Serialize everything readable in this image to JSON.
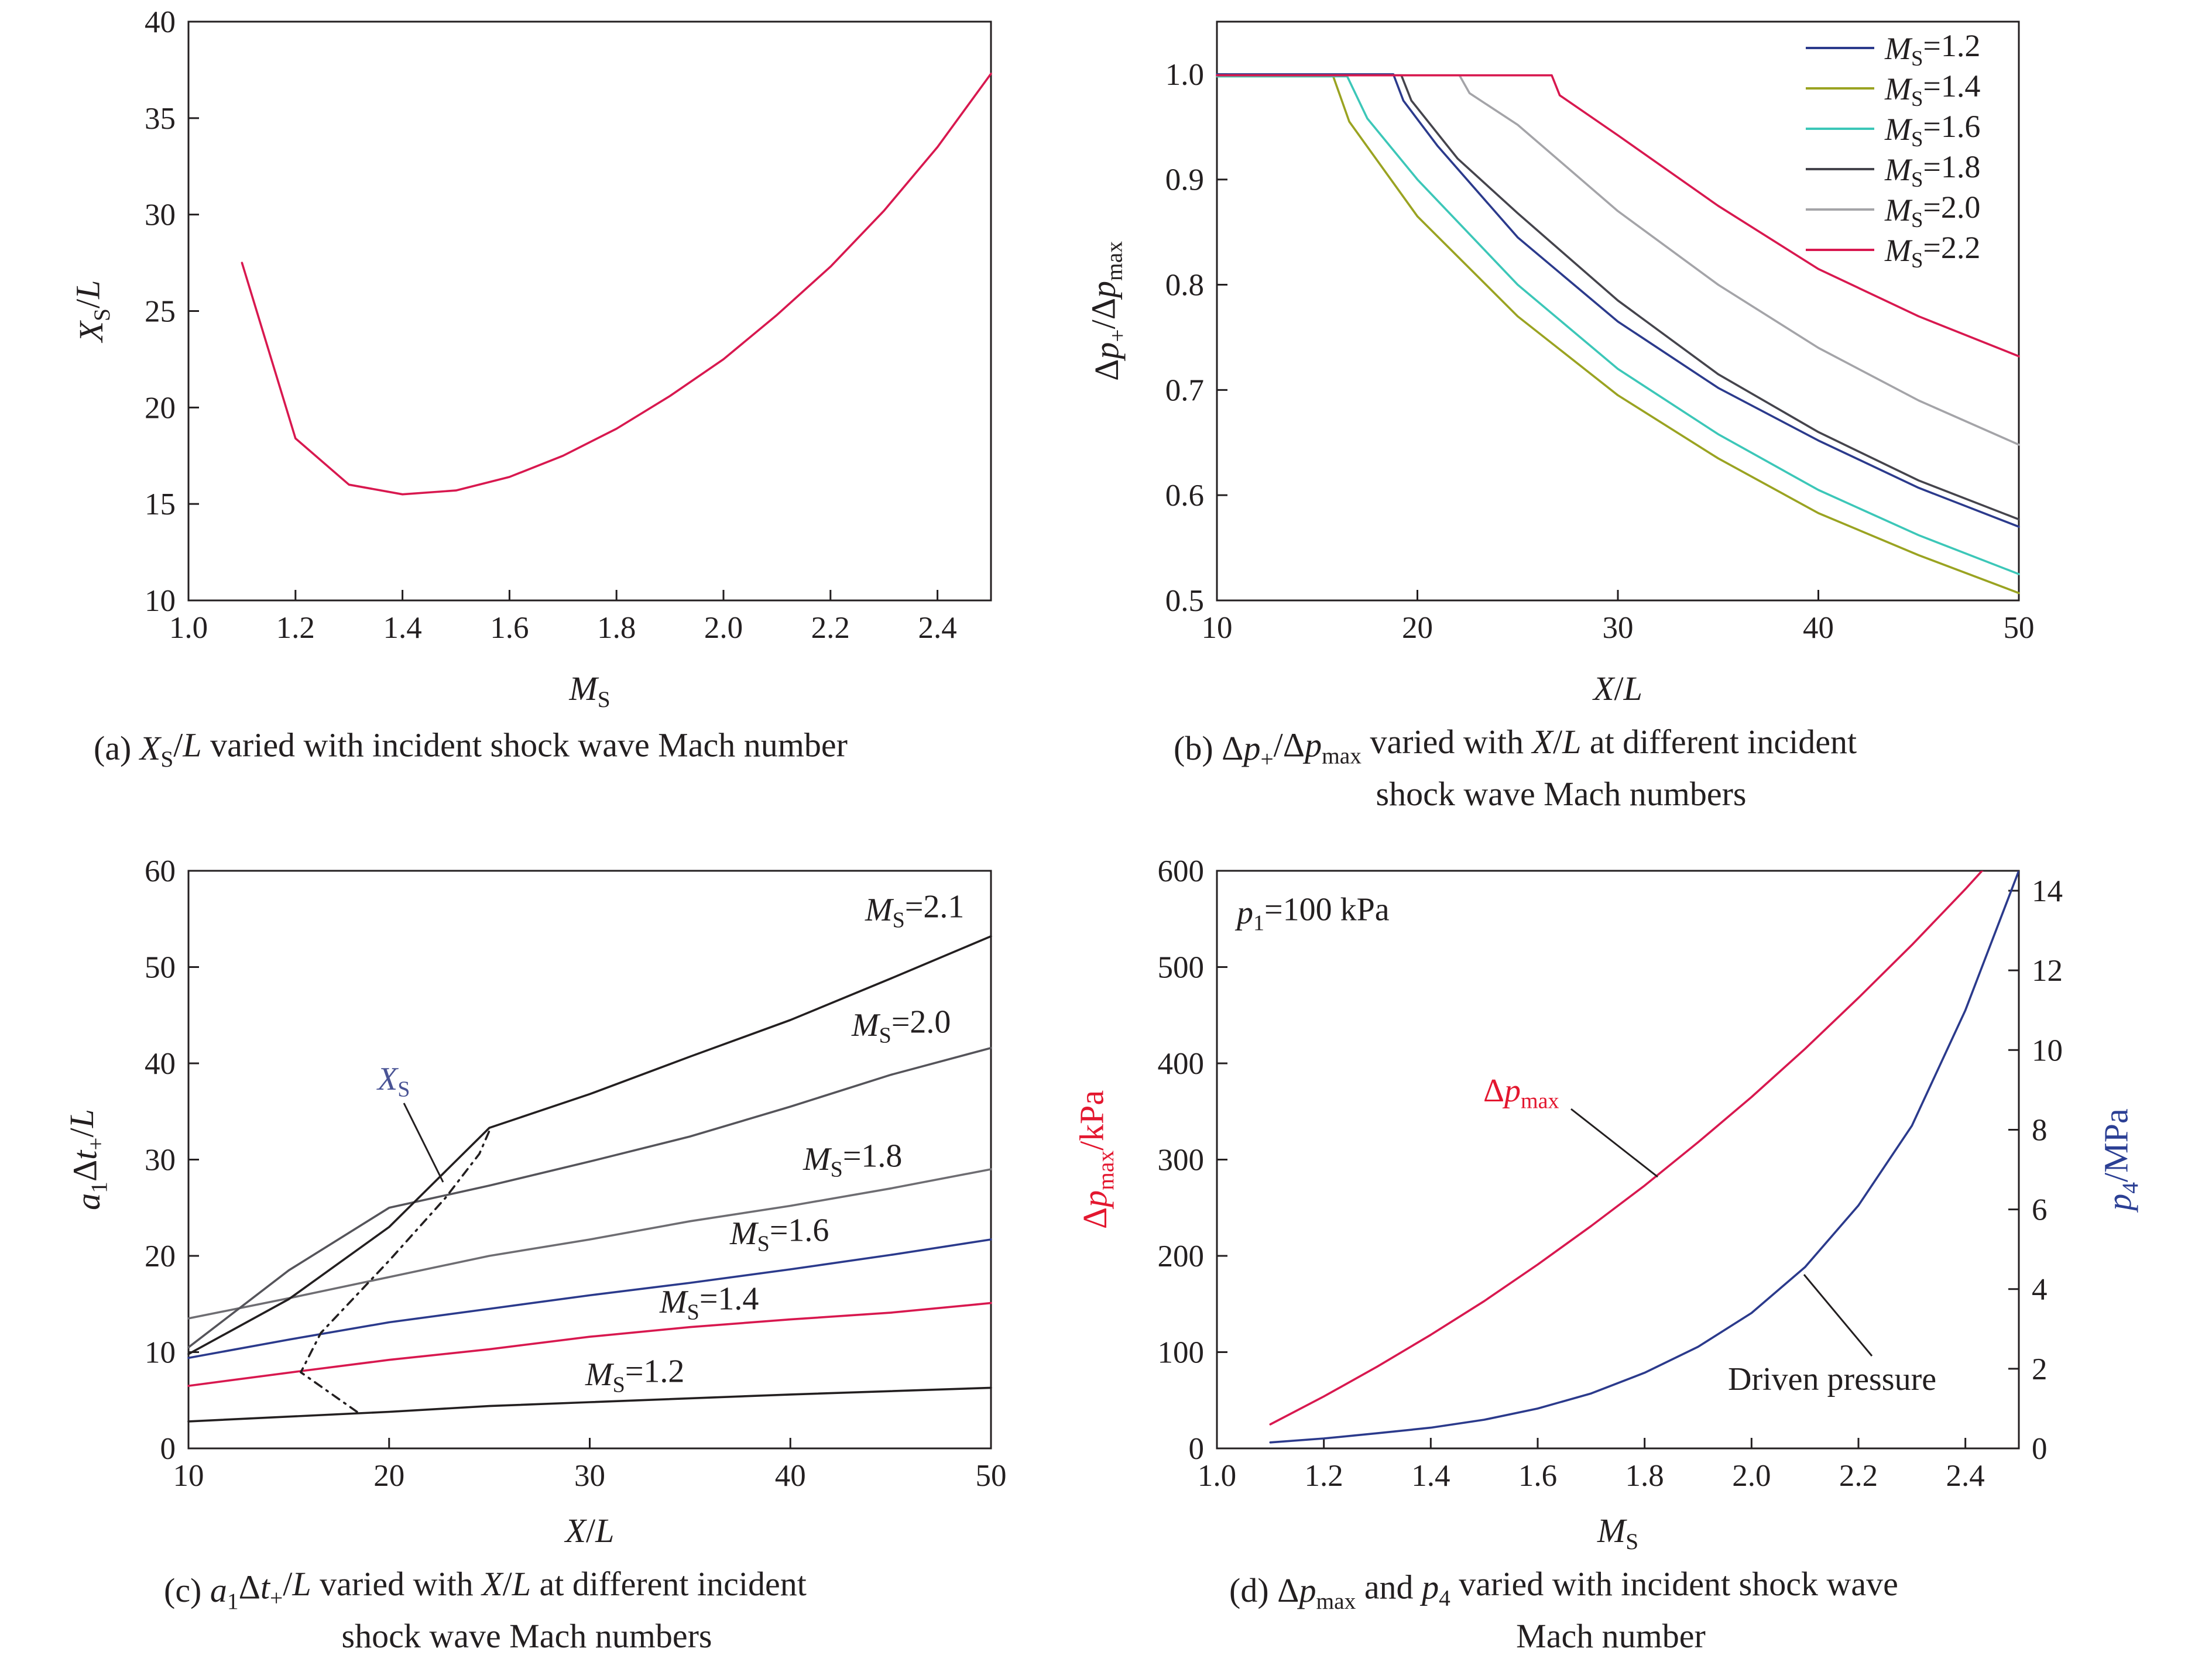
{
  "chart_data": [
    {
      "id": "a",
      "type": "line",
      "caption": "(a) XS/L varied with incident shock wave Mach number",
      "xlabel": "MS",
      "ylabel": "XS/L",
      "xlim": [
        1.0,
        2.5
      ],
      "ylim": [
        10,
        40
      ],
      "xticks": [
        "1.0",
        "1.2",
        "1.4",
        "1.6",
        "1.8",
        "2.0",
        "2.2",
        "2.4"
      ],
      "yticks": [
        "10",
        "15",
        "20",
        "25",
        "30",
        "35",
        "40"
      ],
      "grid": false,
      "series": [
        {
          "color": "#d8184f",
          "points": [
            [
              1.1,
              27.5
            ],
            [
              1.2,
              18.4
            ],
            [
              1.3,
              16.0
            ],
            [
              1.4,
              15.5
            ],
            [
              1.5,
              15.7
            ],
            [
              1.6,
              16.4
            ],
            [
              1.7,
              17.5
            ],
            [
              1.8,
              18.9
            ],
            [
              1.9,
              20.6
            ],
            [
              2.0,
              22.5
            ],
            [
              2.1,
              24.8
            ],
            [
              2.2,
              27.3
            ],
            [
              2.3,
              30.2
            ],
            [
              2.4,
              33.5
            ],
            [
              2.5,
              37.3
            ]
          ]
        }
      ]
    },
    {
      "id": "b",
      "type": "line",
      "caption": "(b) Δp+/Δpmax varied with X/L at different incident shock wave Mach numbers",
      "xlabel": "X/L",
      "ylabel": "Δp+/Δpmax",
      "xlim": [
        10,
        50
      ],
      "ylim": [
        0.5,
        1.05
      ],
      "xticks": [
        "10",
        "20",
        "30",
        "40",
        "50"
      ],
      "yticks": [
        "0.5",
        "0.6",
        "0.7",
        "0.8",
        "0.9",
        "1.0"
      ],
      "grid": false,
      "legend_position": "top-right",
      "series": [
        {
          "name": "MS=1.2",
          "color": "#2b3a8c",
          "points": [
            [
              10,
              1.0
            ],
            [
              18.8,
              1.0
            ],
            [
              19.3,
              0.975
            ],
            [
              21,
              0.932
            ],
            [
              25,
              0.845
            ],
            [
              30,
              0.765
            ],
            [
              35,
              0.702
            ],
            [
              40,
              0.652
            ],
            [
              45,
              0.607
            ],
            [
              50,
              0.57
            ]
          ]
        },
        {
          "name": "MS=1.4",
          "color": "#9aa321",
          "points": [
            [
              10,
              0.998
            ],
            [
              15.8,
              0.998
            ],
            [
              16.6,
              0.955
            ],
            [
              20,
              0.865
            ],
            [
              25,
              0.77
            ],
            [
              30,
              0.695
            ],
            [
              35,
              0.635
            ],
            [
              40,
              0.583
            ],
            [
              45,
              0.543
            ],
            [
              50,
              0.507
            ]
          ]
        },
        {
          "name": "MS=1.6",
          "color": "#3cc7b8",
          "points": [
            [
              10,
              0.998
            ],
            [
              16.5,
              0.998
            ],
            [
              17.5,
              0.958
            ],
            [
              20,
              0.9
            ],
            [
              25,
              0.8
            ],
            [
              30,
              0.72
            ],
            [
              35,
              0.658
            ],
            [
              40,
              0.605
            ],
            [
              45,
              0.562
            ],
            [
              50,
              0.525
            ]
          ]
        },
        {
          "name": "MS=1.8",
          "color": "#45444c",
          "points": [
            [
              10,
              0.999
            ],
            [
              19.2,
              0.999
            ],
            [
              19.7,
              0.975
            ],
            [
              22,
              0.92
            ],
            [
              25,
              0.868
            ],
            [
              30,
              0.785
            ],
            [
              35,
              0.715
            ],
            [
              40,
              0.66
            ],
            [
              45,
              0.614
            ],
            [
              50,
              0.577
            ]
          ]
        },
        {
          "name": "MS=2.0",
          "color": "#a4a4a8",
          "points": [
            [
              10,
              0.999
            ],
            [
              22.1,
              0.999
            ],
            [
              22.6,
              0.982
            ],
            [
              25,
              0.952
            ],
            [
              30,
              0.87
            ],
            [
              35,
              0.8
            ],
            [
              40,
              0.74
            ],
            [
              45,
              0.69
            ],
            [
              50,
              0.648
            ]
          ]
        },
        {
          "name": "MS=2.2",
          "color": "#d8184f",
          "points": [
            [
              10,
              0.999
            ],
            [
              26.7,
              0.999
            ],
            [
              27.1,
              0.98
            ],
            [
              30,
              0.942
            ],
            [
              35,
              0.875
            ],
            [
              40,
              0.815
            ],
            [
              45,
              0.77
            ],
            [
              50,
              0.732
            ]
          ]
        }
      ]
    },
    {
      "id": "c",
      "type": "line",
      "caption": "(c) a1Δt+/L varied with X/L at different incident shock wave Mach numbers",
      "xlabel": "X/L",
      "ylabel": "a1Δt+/L",
      "xlim": [
        10,
        50
      ],
      "ylim": [
        0,
        60
      ],
      "xticks": [
        "10",
        "20",
        "30",
        "40",
        "50"
      ],
      "yticks": [
        "0",
        "10",
        "20",
        "30",
        "40",
        "50",
        "60"
      ],
      "grid": false,
      "series": [
        {
          "name": "MS=1.2",
          "color": "#231f20",
          "points": [
            [
              10,
              2.8
            ],
            [
              20,
              3.8
            ],
            [
              25,
              4.4
            ],
            [
              30,
              4.8
            ],
            [
              40,
              5.6
            ],
            [
              50,
              6.3
            ]
          ]
        },
        {
          "name": "MS=1.4",
          "color": "#d8184f",
          "points": [
            [
              10,
              6.5
            ],
            [
              15.5,
              8.0
            ],
            [
              20,
              9.2
            ],
            [
              25,
              10.3
            ],
            [
              30,
              11.6
            ],
            [
              35,
              12.6
            ],
            [
              40,
              13.4
            ],
            [
              45,
              14.1
            ],
            [
              50,
              15.1
            ]
          ]
        },
        {
          "name": "MS=1.6",
          "color": "#2b3a8c",
          "points": [
            [
              10,
              9.4
            ],
            [
              15,
              11.3
            ],
            [
              20,
              13.1
            ],
            [
              25,
              14.5
            ],
            [
              30,
              15.9
            ],
            [
              35,
              17.2
            ],
            [
              40,
              18.6
            ],
            [
              45,
              20.1
            ],
            [
              50,
              21.7
            ]
          ]
        },
        {
          "name": "MS=1.8",
          "color": "#6e6d72",
          "points": [
            [
              10,
              13.5
            ],
            [
              15,
              15.6
            ],
            [
              20,
              17.8
            ],
            [
              25,
              20.0
            ],
            [
              30,
              21.7
            ],
            [
              35,
              23.6
            ],
            [
              40,
              25.2
            ],
            [
              45,
              27.0
            ],
            [
              50,
              29.0
            ]
          ]
        },
        {
          "name": "MS=2.0",
          "color": "#55545a",
          "points": [
            [
              10,
              10.5
            ],
            [
              15,
              18.5
            ],
            [
              20,
              25.0
            ],
            [
              25,
              27.3
            ],
            [
              30,
              29.8
            ],
            [
              35,
              32.4
            ],
            [
              40,
              35.5
            ],
            [
              45,
              38.8
            ],
            [
              50,
              41.6
            ]
          ]
        },
        {
          "name": "MS=2.1",
          "color": "#231f20",
          "points": [
            [
              10,
              9.8
            ],
            [
              15,
              15.5
            ],
            [
              20,
              23.0
            ],
            [
              25,
              33.3
            ],
            [
              30,
              36.8
            ],
            [
              35,
              40.7
            ],
            [
              40,
              44.5
            ],
            [
              45,
              48.8
            ],
            [
              50,
              53.2
            ]
          ]
        }
      ],
      "xs_curve": {
        "name": "XS",
        "color": "#231f20",
        "points": [
          [
            18.4,
            3.8
          ],
          [
            15.6,
            7.9
          ],
          [
            16.6,
            12.0
          ],
          [
            20.0,
            19.5
          ],
          [
            22.8,
            26.0
          ],
          [
            24.5,
            30.6
          ],
          [
            25.0,
            33.0
          ]
        ]
      }
    },
    {
      "id": "d",
      "type": "line",
      "caption": "(d) Δpmax and p4 varied with incident shock wave Mach number",
      "xlabel": "MS",
      "ylabel_left": "Δpmax/kPa",
      "ylabel_right": "p4/MPa",
      "annotation": "p1=100 kPa",
      "xlim": [
        1.0,
        2.5
      ],
      "ylim_left": [
        0,
        600
      ],
      "ylim_right": [
        0,
        14.5
      ],
      "xticks": [
        "1.0",
        "1.2",
        "1.4",
        "1.6",
        "1.8",
        "2.0",
        "2.2",
        "2.4"
      ],
      "yticks_left": [
        "0",
        "100",
        "200",
        "300",
        "400",
        "500",
        "600"
      ],
      "yticks_right": [
        "0",
        "2",
        "4",
        "6",
        "8",
        "10",
        "12",
        "14"
      ],
      "left_color": "#e3172f",
      "right_color": "#2b3f94",
      "grid": false,
      "series": [
        {
          "name": "Δpmax",
          "axis": "left",
          "color": "#d8184f",
          "points": [
            [
              1.1,
              25
            ],
            [
              1.2,
              54
            ],
            [
              1.3,
              85
            ],
            [
              1.4,
              118
            ],
            [
              1.5,
              153
            ],
            [
              1.6,
              191
            ],
            [
              1.7,
              231
            ],
            [
              1.8,
              273
            ],
            [
              1.9,
              318
            ],
            [
              2.0,
              365
            ],
            [
              2.1,
              415
            ],
            [
              2.2,
              468
            ],
            [
              2.3,
              523
            ],
            [
              2.4,
              581
            ],
            [
              2.5,
              642
            ]
          ]
        },
        {
          "name": "Driven pressure",
          "axis": "right",
          "color": "#2b3a8c",
          "points": [
            [
              1.1,
              0.15
            ],
            [
              1.2,
              0.25
            ],
            [
              1.3,
              0.38
            ],
            [
              1.4,
              0.52
            ],
            [
              1.5,
              0.72
            ],
            [
              1.6,
              1.0
            ],
            [
              1.7,
              1.38
            ],
            [
              1.8,
              1.9
            ],
            [
              1.9,
              2.55
            ],
            [
              2.0,
              3.4
            ],
            [
              2.1,
              4.55
            ],
            [
              2.2,
              6.1
            ],
            [
              2.3,
              8.1
            ],
            [
              2.4,
              11.0
            ],
            [
              2.5,
              14.5
            ]
          ]
        }
      ]
    }
  ]
}
